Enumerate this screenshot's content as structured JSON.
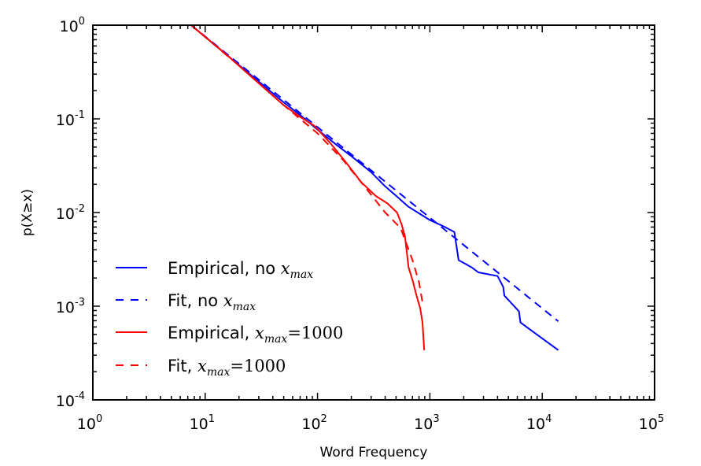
{
  "chart_data": {
    "type": "line",
    "title": "",
    "xlabel": "Word Frequency",
    "ylabel": "p(X≥x)",
    "xscale": "log",
    "yscale": "log",
    "xlim": [
      1,
      100000
    ],
    "ylim": [
      0.0001,
      1
    ],
    "grid": false,
    "legend_position": "bottom-left",
    "x_ticks": [
      {
        "base": "10",
        "exp": "0",
        "value": 1
      },
      {
        "base": "10",
        "exp": "1",
        "value": 10
      },
      {
        "base": "10",
        "exp": "2",
        "value": 100
      },
      {
        "base": "10",
        "exp": "3",
        "value": 1000
      },
      {
        "base": "10",
        "exp": "4",
        "value": 10000
      },
      {
        "base": "10",
        "exp": "5",
        "value": 100000
      }
    ],
    "y_ticks": [
      {
        "base": "10",
        "exp": "0",
        "value": 1
      },
      {
        "base": "10",
        "exp": "-1",
        "value": 0.1
      },
      {
        "base": "10",
        "exp": "-2",
        "value": 0.01
      },
      {
        "base": "10",
        "exp": "-3",
        "value": 0.001
      },
      {
        "base": "10",
        "exp": "-4",
        "value": 0.0001
      }
    ],
    "series": [
      {
        "name": "Empirical, no x_max",
        "legend_prefix": "Empirical, no ",
        "legend_math": "x",
        "legend_sub": "max",
        "legend_suffix": "",
        "color": "#0000ff",
        "style": "solid",
        "x": [
          7.5,
          15,
          30,
          50,
          70,
          101,
          150,
          200,
          300,
          400,
          520,
          640,
          800,
          1000,
          1300,
          1650,
          1800,
          2000,
          2350,
          2700,
          4000,
          4500,
          4600,
          6200,
          6400,
          13900
        ],
        "y": [
          1,
          0.5,
          0.25,
          0.15,
          0.11,
          0.076,
          0.052,
          0.04,
          0.027,
          0.019,
          0.0145,
          0.0116,
          0.0098,
          0.0083,
          0.0072,
          0.0062,
          0.0031,
          0.0029,
          0.0026,
          0.0023,
          0.0021,
          0.0016,
          0.0013,
          0.00088,
          0.00067,
          0.00034
        ]
      },
      {
        "name": "Fit, no x_max",
        "legend_prefix": "Fit, no ",
        "legend_math": "x",
        "legend_sub": "max",
        "legend_suffix": "",
        "color": "#0000ff",
        "style": "dashed",
        "x": [
          7.5,
          13900
        ],
        "y": [
          1,
          0.00069
        ]
      },
      {
        "name": "Empirical, x_max=1000",
        "legend_prefix": "Empirical, ",
        "legend_math": "x",
        "legend_sub": "max",
        "legend_suffix": "=1000",
        "color": "#ff0000",
        "style": "solid",
        "x": [
          7.5,
          15,
          30,
          50,
          70,
          94,
          130,
          180,
          246,
          330,
          420,
          510,
          560,
          600,
          646,
          700,
          760,
          820,
          860,
          890
        ],
        "y": [
          1,
          0.5,
          0.24,
          0.14,
          0.105,
          0.084,
          0.055,
          0.034,
          0.021,
          0.015,
          0.0125,
          0.01,
          0.0075,
          0.0056,
          0.0026,
          0.0019,
          0.0013,
          0.00095,
          0.00067,
          0.00034
        ]
      },
      {
        "name": "Fit, x_max=1000",
        "legend_prefix": "Fit, ",
        "legend_math": "x",
        "legend_sub": "max",
        "legend_suffix": "=1000",
        "color": "#ff0000",
        "style": "dashed",
        "x": [
          7.5,
          20,
          50,
          100,
          170,
          290,
          400,
          550,
          700,
          800,
          860
        ],
        "y": [
          1,
          0.37,
          0.14,
          0.07,
          0.036,
          0.0163,
          0.01,
          0.0068,
          0.0031,
          0.0018,
          0.0011
        ]
      }
    ]
  }
}
